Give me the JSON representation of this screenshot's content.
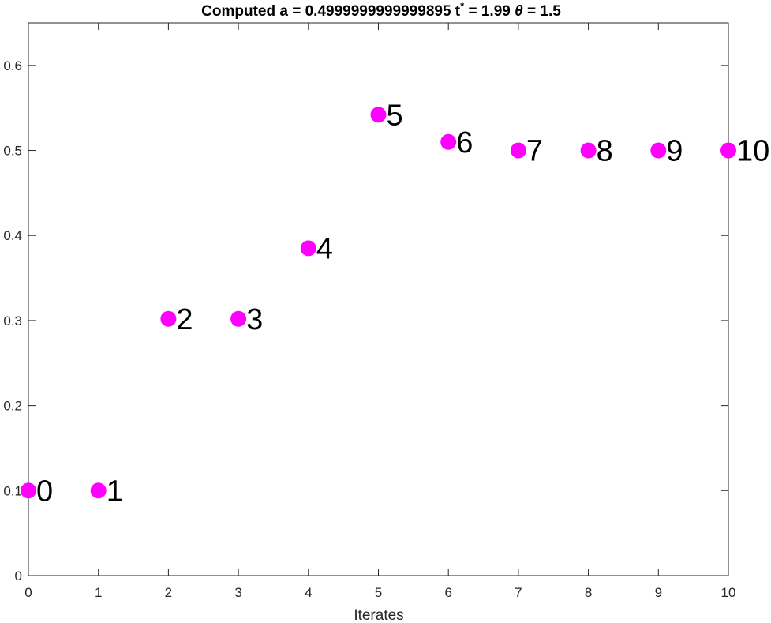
{
  "chart_data": {
    "type": "scatter",
    "title": {
      "prefix": "Computed a = 0.4999999999999895   t",
      "sup": "*",
      "middle": " = 1.99    ",
      "theta": "θ",
      "suffix": " = 1.5"
    },
    "xlabel": "Iterates",
    "ylabel": "",
    "xlim": [
      0,
      10
    ],
    "ylim": [
      0,
      0.65
    ],
    "xticks": [
      0,
      1,
      2,
      3,
      4,
      5,
      6,
      7,
      8,
      9,
      10
    ],
    "yticks": [
      0,
      0.1,
      0.2,
      0.3,
      0.4,
      0.5,
      0.6
    ],
    "xtick_labels": [
      "0",
      "1",
      "2",
      "3",
      "4",
      "5",
      "6",
      "7",
      "8",
      "9",
      "10"
    ],
    "ytick_labels": [
      "0",
      "0.1",
      "0.2",
      "0.3",
      "0.4",
      "0.5",
      "0.6"
    ],
    "grid": false,
    "marker_color": "#ff00ff",
    "points": [
      {
        "x": 0,
        "y": 0.1,
        "label": "0"
      },
      {
        "x": 1,
        "y": 0.1,
        "label": "1"
      },
      {
        "x": 2,
        "y": 0.302,
        "label": "2"
      },
      {
        "x": 3,
        "y": 0.302,
        "label": "3"
      },
      {
        "x": 4,
        "y": 0.385,
        "label": "4"
      },
      {
        "x": 5,
        "y": 0.542,
        "label": "5"
      },
      {
        "x": 6,
        "y": 0.51,
        "label": "6"
      },
      {
        "x": 7,
        "y": 0.5,
        "label": "7"
      },
      {
        "x": 8,
        "y": 0.5,
        "label": "8"
      },
      {
        "x": 9,
        "y": 0.5,
        "label": "9"
      },
      {
        "x": 10,
        "y": 0.5,
        "label": "10"
      }
    ]
  }
}
